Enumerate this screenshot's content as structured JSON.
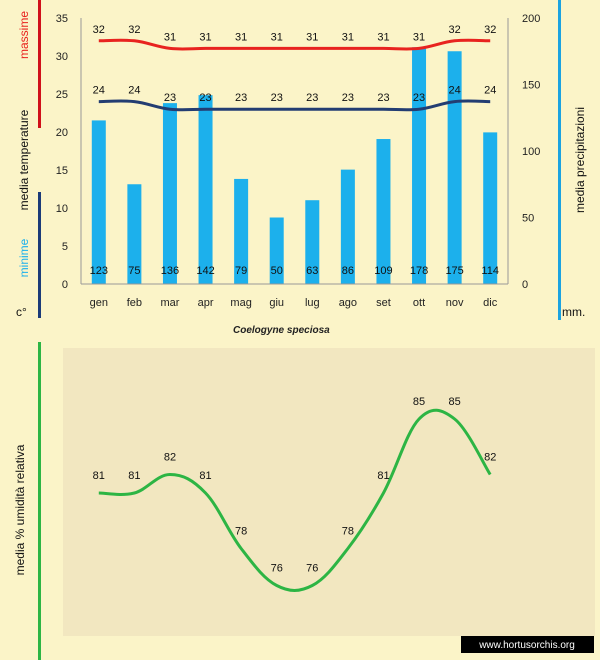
{
  "chart_data": [
    {
      "type": "bar",
      "title": "",
      "categories": [
        "gen",
        "feb",
        "mar",
        "apr",
        "mag",
        "giu",
        "lug",
        "ago",
        "set",
        "ott",
        "nov",
        "dic"
      ],
      "series": [
        {
          "name": "media precipitazioni",
          "axis": "right",
          "type": "bar",
          "values": [
            123,
            75,
            136,
            142,
            79,
            50,
            63,
            86,
            109,
            178,
            175,
            114
          ]
        },
        {
          "name": "massime",
          "axis": "left",
          "type": "line",
          "values": [
            32,
            32,
            31,
            31,
            31,
            31,
            31,
            31,
            31,
            31,
            32,
            32
          ]
        },
        {
          "name": "minime",
          "axis": "left",
          "type": "line",
          "values": [
            24,
            24,
            23,
            23,
            23,
            23,
            23,
            23,
            23,
            23,
            24,
            24
          ]
        }
      ],
      "left_axis": {
        "ylim": [
          0,
          35
        ],
        "ticks": [
          0,
          5,
          10,
          15,
          20,
          25,
          30,
          35
        ],
        "label_top": "massime",
        "label_mid": "media  temperature",
        "label_bottom": "minime",
        "unit": "c°"
      },
      "right_axis": {
        "ylim": [
          0,
          200
        ],
        "ticks": [
          0,
          50,
          100,
          150,
          200
        ],
        "label": "media  precipitazioni",
        "unit": "mm."
      },
      "colors": {
        "bars": "#1cb0ec",
        "max": "#e8231f",
        "min": "#233d72",
        "massime_bar": "#d0101a",
        "temp_bar": "#1b3b78",
        "precip_bar": "#1ba3e0"
      }
    },
    {
      "type": "line",
      "title": "Coelogyne speciosa",
      "categories": [
        "gen",
        "feb",
        "mar",
        "apr",
        "mag",
        "giu",
        "lug",
        "ago",
        "set",
        "ott",
        "nov",
        "dic"
      ],
      "values": [
        81,
        81,
        82,
        81,
        78,
        76,
        76,
        78,
        81,
        85,
        85,
        82
      ],
      "ylabel": "media %  umidità relativa",
      "ylim": [
        74,
        87
      ],
      "colors": {
        "line": "#2db544",
        "bar": "#2db544",
        "panel": "#f3e8c0"
      }
    }
  ],
  "watermark": "www.hortusorchis.org"
}
